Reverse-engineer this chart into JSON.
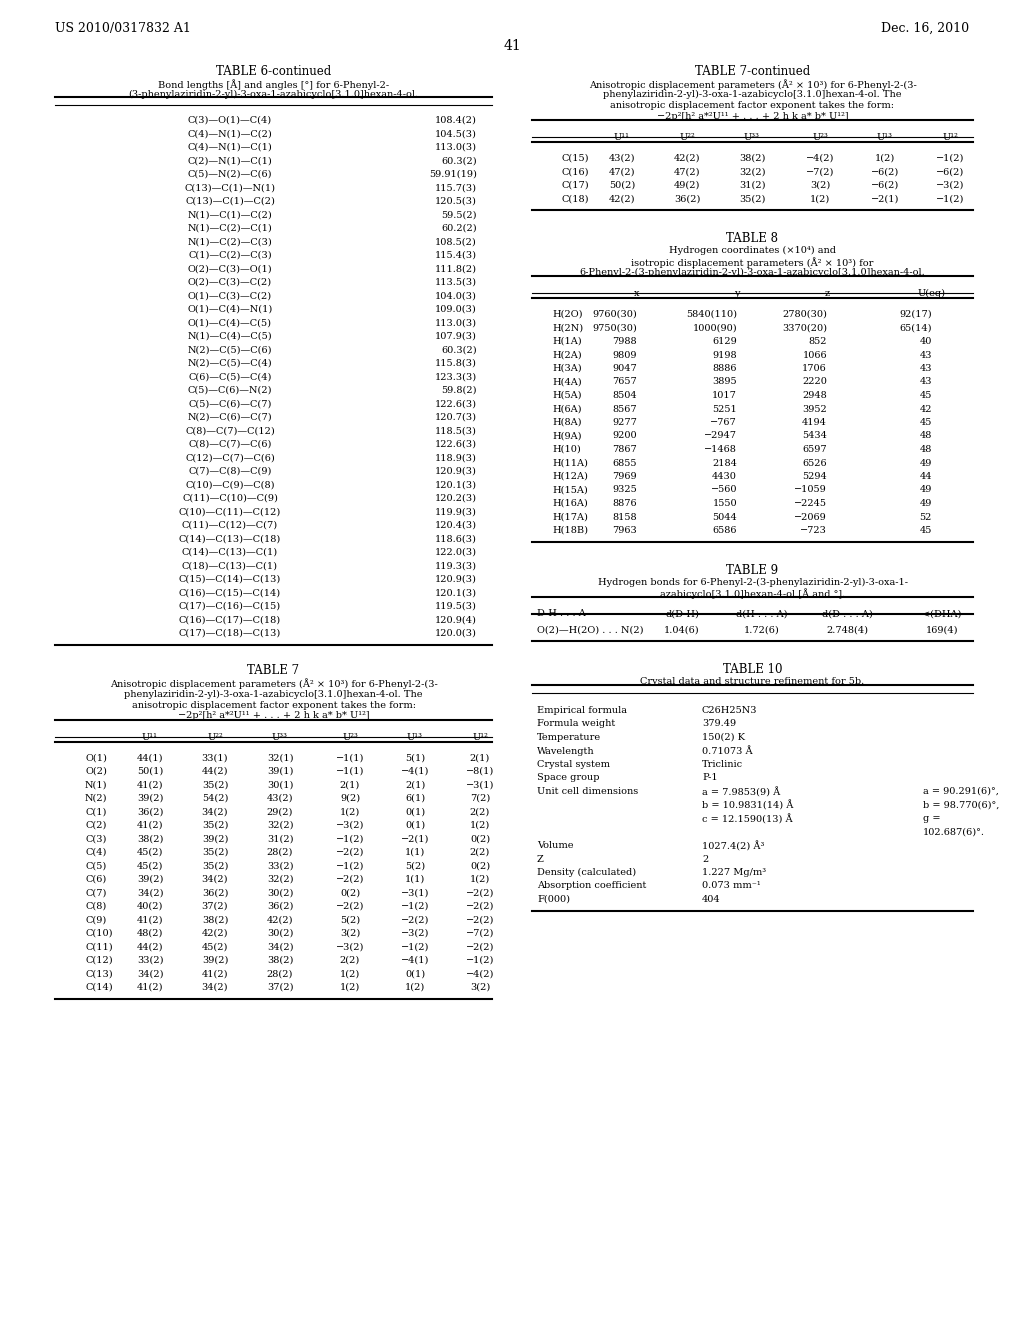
{
  "page_header_left": "US 2010/0317832 A1",
  "page_header_right": "Dec. 16, 2010",
  "page_number": "41",
  "table6c_title": "TABLE 6-continued",
  "table6c_subtitle1": "Bond lengths [Å] and angles [°] for 6-Phenyl-2-",
  "table6c_subtitle2": "(3-phenylaziridin-2-yl)-3-oxa-1-azabicyclo[3.1.0]hexan-4-ol.",
  "table6c_data": [
    [
      "C(3)—O(1)—C(4)",
      "108.4(2)"
    ],
    [
      "C(4)—N(1)—C(2)",
      "104.5(3)"
    ],
    [
      "C(4)—N(1)—C(1)",
      "113.0(3)"
    ],
    [
      "C(2)—N(1)—C(1)",
      "60.3(2)"
    ],
    [
      "C(5)—N(2)—C(6)",
      "59.91(19)"
    ],
    [
      "C(13)—C(1)—N(1)",
      "115.7(3)"
    ],
    [
      "C(13)—C(1)—C(2)",
      "120.5(3)"
    ],
    [
      "N(1)—C(1)—C(2)",
      "59.5(2)"
    ],
    [
      "N(1)—C(2)—C(1)",
      "60.2(2)"
    ],
    [
      "N(1)—C(2)—C(3)",
      "108.5(2)"
    ],
    [
      "C(1)—C(2)—C(3)",
      "115.4(3)"
    ],
    [
      "O(2)—C(3)—O(1)",
      "111.8(2)"
    ],
    [
      "O(2)—C(3)—C(2)",
      "113.5(3)"
    ],
    [
      "O(1)—C(3)—C(2)",
      "104.0(3)"
    ],
    [
      "O(1)—C(4)—N(1)",
      "109.0(3)"
    ],
    [
      "O(1)—C(4)—C(5)",
      "113.0(3)"
    ],
    [
      "N(1)—C(4)—C(5)",
      "107.9(3)"
    ],
    [
      "N(2)—C(5)—C(6)",
      "60.3(2)"
    ],
    [
      "N(2)—C(5)—C(4)",
      "115.8(3)"
    ],
    [
      "C(6)—C(5)—C(4)",
      "123.3(3)"
    ],
    [
      "C(5)—C(6)—N(2)",
      "59.8(2)"
    ],
    [
      "C(5)—C(6)—C(7)",
      "122.6(3)"
    ],
    [
      "N(2)—C(6)—C(7)",
      "120.7(3)"
    ],
    [
      "C(8)—C(7)—C(12)",
      "118.5(3)"
    ],
    [
      "C(8)—C(7)—C(6)",
      "122.6(3)"
    ],
    [
      "C(12)—C(7)—C(6)",
      "118.9(3)"
    ],
    [
      "C(7)—C(8)—C(9)",
      "120.9(3)"
    ],
    [
      "C(10)—C(9)—C(8)",
      "120.1(3)"
    ],
    [
      "C(11)—C(10)—C(9)",
      "120.2(3)"
    ],
    [
      "C(10)—C(11)—C(12)",
      "119.9(3)"
    ],
    [
      "C(11)—C(12)—C(7)",
      "120.4(3)"
    ],
    [
      "C(14)—C(13)—C(18)",
      "118.6(3)"
    ],
    [
      "C(14)—C(13)—C(1)",
      "122.0(3)"
    ],
    [
      "C(18)—C(13)—C(1)",
      "119.3(3)"
    ],
    [
      "C(15)—C(14)—C(13)",
      "120.9(3)"
    ],
    [
      "C(16)—C(15)—C(14)",
      "120.1(3)"
    ],
    [
      "C(17)—C(16)—C(15)",
      "119.5(3)"
    ],
    [
      "C(16)—C(17)—C(18)",
      "120.9(4)"
    ],
    [
      "C(17)—C(18)—C(13)",
      "120.0(3)"
    ]
  ],
  "table7_title": "TABLE 7",
  "table7_sub1": "Anisotropic displacement parameters (Å² × 10³) for 6-Phenyl-2-(3-",
  "table7_sub2": "phenylaziridin-2-yl)-3-oxa-1-azabicyclo[3.1.0]hexan-4-ol. The",
  "table7_sub3": "anisotropic displacement factor exponent takes the form:",
  "table7_sub4": "−2p²[h² a*²U¹¹ + . . . + 2 h k a* b* U¹²]",
  "table7_headers": [
    "",
    "U¹¹",
    "U²²",
    "U³³",
    "U²³",
    "U¹³",
    "U¹²"
  ],
  "table7_data": [
    [
      "O(1)",
      "44(1)",
      "33(1)",
      "32(1)",
      "−1(1)",
      "5(1)",
      "2(1)"
    ],
    [
      "O(2)",
      "50(1)",
      "44(2)",
      "39(1)",
      "−1(1)",
      "−4(1)",
      "−8(1)"
    ],
    [
      "N(1)",
      "41(2)",
      "35(2)",
      "30(1)",
      "2(1)",
      "2(1)",
      "−3(1)"
    ],
    [
      "N(2)",
      "39(2)",
      "54(2)",
      "43(2)",
      "9(2)",
      "6(1)",
      "7(2)"
    ],
    [
      "C(1)",
      "36(2)",
      "34(2)",
      "29(2)",
      "1(2)",
      "0(1)",
      "2(2)"
    ],
    [
      "C(2)",
      "41(2)",
      "35(2)",
      "32(2)",
      "−3(2)",
      "0(1)",
      "1(2)"
    ],
    [
      "C(3)",
      "38(2)",
      "39(2)",
      "31(2)",
      "−1(2)",
      "−2(1)",
      "0(2)"
    ],
    [
      "C(4)",
      "45(2)",
      "35(2)",
      "28(2)",
      "−2(2)",
      "1(1)",
      "2(2)"
    ],
    [
      "C(5)",
      "45(2)",
      "35(2)",
      "33(2)",
      "−1(2)",
      "5(2)",
      "0(2)"
    ],
    [
      "C(6)",
      "39(2)",
      "34(2)",
      "32(2)",
      "−2(2)",
      "1(1)",
      "1(2)"
    ],
    [
      "C(7)",
      "34(2)",
      "36(2)",
      "30(2)",
      "0(2)",
      "−3(1)",
      "−2(2)"
    ],
    [
      "C(8)",
      "40(2)",
      "37(2)",
      "36(2)",
      "−2(2)",
      "−1(2)",
      "−2(2)"
    ],
    [
      "C(9)",
      "41(2)",
      "38(2)",
      "42(2)",
      "5(2)",
      "−2(2)",
      "−2(2)"
    ],
    [
      "C(10)",
      "48(2)",
      "42(2)",
      "30(2)",
      "3(2)",
      "−3(2)",
      "−7(2)"
    ],
    [
      "C(11)",
      "44(2)",
      "45(2)",
      "34(2)",
      "−3(2)",
      "−1(2)",
      "−2(2)"
    ],
    [
      "C(12)",
      "33(2)",
      "39(2)",
      "38(2)",
      "2(2)",
      "−4(1)",
      "−1(2)"
    ],
    [
      "C(13)",
      "34(2)",
      "41(2)",
      "28(2)",
      "1(2)",
      "0(1)",
      "−4(2)"
    ],
    [
      "C(14)",
      "41(2)",
      "34(2)",
      "37(2)",
      "1(2)",
      "1(2)",
      "3(2)"
    ]
  ],
  "table7c_title": "TABLE 7-continued",
  "table7c_sub1": "Anisotropic displacement parameters (Å² × 10³) for 6-Phenyl-2-(3-",
  "table7c_sub2": "phenylaziridin-2-yl)-3-oxa-1-azabicyclo[3.1.0]hexan-4-ol. The",
  "table7c_sub3": "anisotropic displacement factor exponent takes the form:",
  "table7c_sub4": "−2p²[h² a*²U¹¹ + . . . + 2 h k a* b* U¹²]",
  "table7c_headers": [
    "",
    "U¹¹",
    "U²²",
    "U³³",
    "U²³",
    "U¹³",
    "U¹²"
  ],
  "table7c_data": [
    [
      "C(15)",
      "43(2)",
      "42(2)",
      "38(2)",
      "−4(2)",
      "1(2)",
      "−1(2)"
    ],
    [
      "C(16)",
      "47(2)",
      "47(2)",
      "32(2)",
      "−7(2)",
      "−6(2)",
      "−6(2)"
    ],
    [
      "C(17)",
      "50(2)",
      "49(2)",
      "31(2)",
      "3(2)",
      "−6(2)",
      "−3(2)"
    ],
    [
      "C(18)",
      "42(2)",
      "36(2)",
      "35(2)",
      "1(2)",
      "−2(1)",
      "−1(2)"
    ]
  ],
  "table8_title": "TABLE 8",
  "table8_sub1": "Hydrogen coordinates (×10⁴) and",
  "table8_sub2": "isotropic displacement parameters (Å² × 10³) for",
  "table8_sub3": "6-Phenyl-2-(3-phenylaziridin-2-yl)-3-oxa-1-azabicyclo[3.1.0]hexan-4-ol.",
  "table8_headers": [
    "",
    "x",
    "y",
    "z",
    "U(eq)"
  ],
  "table8_data": [
    [
      "H(2O)",
      "9760(30)",
      "5840(110)",
      "2780(30)",
      "92(17)"
    ],
    [
      "H(2N)",
      "9750(30)",
      "1000(90)",
      "3370(20)",
      "65(14)"
    ],
    [
      "H(1A)",
      "7988",
      "6129",
      "852",
      "40"
    ],
    [
      "H(2A)",
      "9809",
      "9198",
      "1066",
      "43"
    ],
    [
      "H(3A)",
      "9047",
      "8886",
      "1706",
      "43"
    ],
    [
      "H(4A)",
      "7657",
      "3895",
      "2220",
      "43"
    ],
    [
      "H(5A)",
      "8504",
      "1017",
      "2948",
      "45"
    ],
    [
      "H(6A)",
      "8567",
      "5251",
      "3952",
      "42"
    ],
    [
      "H(8A)",
      "9277",
      "−767",
      "4194",
      "45"
    ],
    [
      "H(9A)",
      "9200",
      "−2947",
      "5434",
      "48"
    ],
    [
      "H(10)",
      "7867",
      "−1468",
      "6597",
      "48"
    ],
    [
      "H(11A)",
      "6855",
      "2184",
      "6526",
      "49"
    ],
    [
      "H(12A)",
      "7969",
      "4430",
      "5294",
      "44"
    ],
    [
      "H(15A)",
      "9325",
      "−560",
      "−1059",
      "49"
    ],
    [
      "H(16A)",
      "8876",
      "1550",
      "−2245",
      "49"
    ],
    [
      "H(17A)",
      "8158",
      "5044",
      "−2069",
      "52"
    ],
    [
      "H(18B)",
      "7963",
      "6586",
      "−723",
      "45"
    ]
  ],
  "table9_title": "TABLE 9",
  "table9_sub1": "Hydrogen bonds for 6-Phenyl-2-(3-phenylaziridin-2-yl)-3-oxa-1-",
  "table9_sub2": "azabicyclo[3.1.0]hexan-4-ol [Å and °].",
  "table9_headers": [
    "D-H . . . A",
    "d(D-H)",
    "d(H . . . A)",
    "d(D . . . A)",
    "<(DHA)"
  ],
  "table9_data": [
    [
      "O(2)—H(2O) . . . N(2)",
      "1.04(6)",
      "1.72(6)",
      "2.748(4)",
      "169(4)"
    ]
  ],
  "table10_title": "TABLE 10",
  "table10_subtitle": "Crystal data and structure refinement for 5b.",
  "table10_data": [
    [
      "Empirical formula",
      "C26H25N3",
      ""
    ],
    [
      "Formula weight",
      "379.49",
      ""
    ],
    [
      "Temperature",
      "150(2) K",
      ""
    ],
    [
      "Wavelength",
      "0.71073 Å",
      ""
    ],
    [
      "Crystal system",
      "Triclinic",
      ""
    ],
    [
      "Space group",
      "P-1",
      ""
    ],
    [
      "Unit cell dimensions",
      "a = 7.9853(9) Å",
      "a = 90.291(6)°,"
    ],
    [
      "",
      "b = 10.9831(14) Å",
      "b = 98.770(6)°,"
    ],
    [
      "",
      "c = 12.1590(13) Å",
      "g ="
    ],
    [
      "",
      "",
      "102.687(6)°."
    ],
    [
      "Volume",
      "1027.4(2) Å³",
      ""
    ],
    [
      "Z",
      "2",
      ""
    ],
    [
      "Density (calculated)",
      "1.227 Mg/m³",
      ""
    ],
    [
      "Absorption coefficient",
      "0.073 mm⁻¹",
      ""
    ],
    [
      "F(000)",
      "404",
      ""
    ]
  ]
}
